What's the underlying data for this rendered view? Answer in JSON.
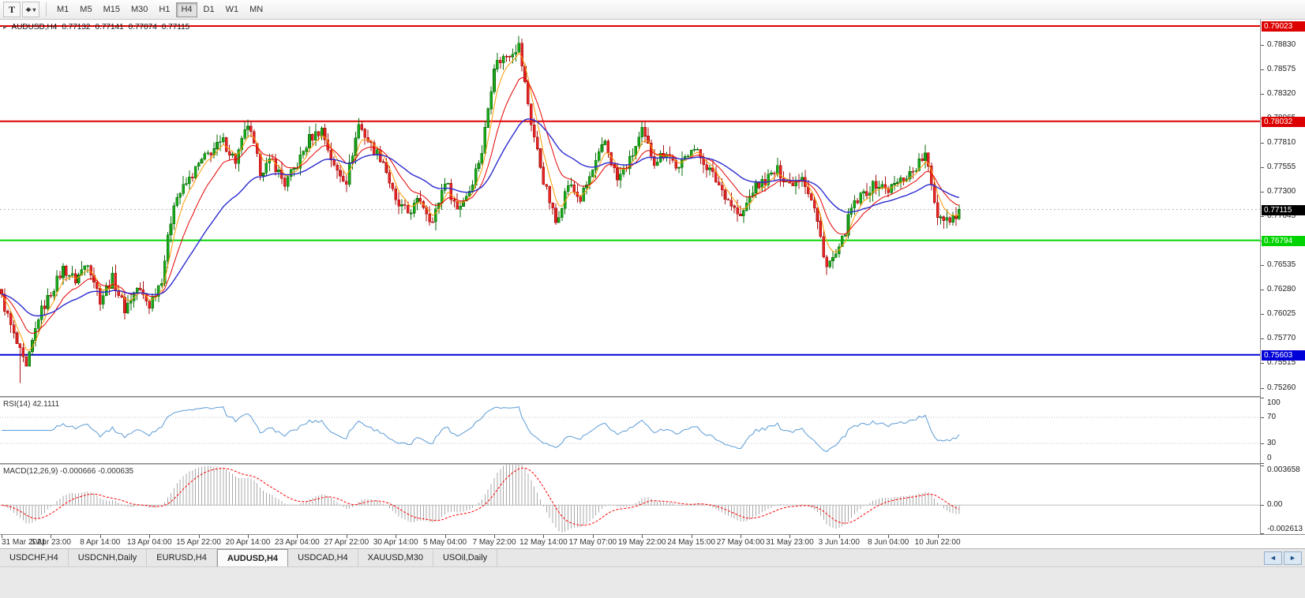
{
  "toolbar": {
    "text_tool_label": "T",
    "cursor_tool_glyph": "⌖",
    "cursor_tool_caret": "▾",
    "timeframes": [
      {
        "label": "M1",
        "active": false
      },
      {
        "label": "M5",
        "active": false
      },
      {
        "label": "M15",
        "active": false
      },
      {
        "label": "M30",
        "active": false
      },
      {
        "label": "H1",
        "active": false
      },
      {
        "label": "H4",
        "active": true
      },
      {
        "label": "D1",
        "active": false
      },
      {
        "label": "W1",
        "active": false
      },
      {
        "label": "MN",
        "active": false
      }
    ]
  },
  "quote_line": {
    "marker": "▸",
    "symbol": "AUDUSD,H4",
    "open": "0.77132",
    "high": "0.77141",
    "low": "0.77074",
    "close": "0.77115"
  },
  "price_scale": {
    "labels": [
      "0.78830",
      "0.78575",
      "0.78320",
      "0.78065",
      "0.77810",
      "0.77555",
      "0.77300",
      "0.77045",
      "0.76790",
      "0.76535",
      "0.76280",
      "0.76025",
      "0.75770",
      "0.75515",
      "0.75260"
    ]
  },
  "levels": [
    {
      "price": 0.79023,
      "label": "0.79023",
      "color": "#dd0000",
      "text_color": "#ffffff",
      "thickness": 2
    },
    {
      "price": 0.78032,
      "label": "0.78032",
      "color": "#dd0000",
      "text_color": "#ffffff",
      "thickness": 2
    },
    {
      "price": 0.76794,
      "label": "0.76794",
      "color": "#00d400",
      "text_color": "#ffffff",
      "thickness": 2
    },
    {
      "price": 0.75603,
      "label": "0.75603",
      "color": "#0000d9",
      "text_color": "#ffffff",
      "thickness": 2
    }
  ],
  "current_price": {
    "value": 0.77115,
    "label": "0.77115",
    "bg": "#000000",
    "text_color": "#ffffff"
  },
  "time_axis": [
    "31 Mar 2021",
    "5 Apr 23:00",
    "8 Apr 14:00",
    "13 Apr 04:00",
    "15 Apr 22:00",
    "20 Apr 14:00",
    "23 Apr 04:00",
    "27 Apr 22:00",
    "30 Apr 14:00",
    "5 May 04:00",
    "7 May 22:00",
    "12 May 14:00",
    "17 May 07:00",
    "19 May 22:00",
    "24 May 15:00",
    "27 May 04:00",
    "31 May 23:00",
    "3 Jun 14:00",
    "8 Jun 04:00",
    "10 Jun 22:00"
  ],
  "rsi_panel": {
    "label": "RSI(14) 42.1111",
    "scale": [
      "100",
      "70",
      "30",
      "0"
    ],
    "levels": [
      70,
      30
    ],
    "line_color": "#5b9bd5"
  },
  "macd_panel": {
    "label": "MACD(12,26,9) -0.000666 -0.000635",
    "scale_top": "0.003658",
    "scale_zero": "0.00",
    "scale_bottom": "-0.002613",
    "histogram_color": "#a8a8a8",
    "signal_color": "#ff0000"
  },
  "tabs": [
    {
      "label": "USDCHF,H4",
      "active": false
    },
    {
      "label": "USDCNH,Daily",
      "active": false
    },
    {
      "label": "EURUSD,H4",
      "active": false
    },
    {
      "label": "AUDUSD,H4",
      "active": true
    },
    {
      "label": "USDCAD,H4",
      "active": false
    },
    {
      "label": "XAUUSD,M30",
      "active": false
    },
    {
      "label": "USOil,Daily",
      "active": false
    }
  ],
  "tab_scroll": {
    "left": "◄",
    "right": "►"
  },
  "chart_data": {
    "type": "candlestick",
    "symbol": "AUDUSD",
    "timeframe": "H4",
    "visible_range": {
      "start": "31 Mar 2021",
      "end": "11 Jun 2021"
    },
    "price_axis": {
      "min": 0.75174,
      "max": 0.79089
    },
    "candle_count": 312,
    "waypoint_step": 4,
    "close_waypoints": [
      0.762,
      0.758,
      0.7545,
      0.76,
      0.7625,
      0.765,
      0.7638,
      0.7658,
      0.7618,
      0.764,
      0.7608,
      0.763,
      0.7612,
      0.764,
      0.772,
      0.7738,
      0.7758,
      0.7772,
      0.7782,
      0.7762,
      0.78,
      0.7752,
      0.7762,
      0.7738,
      0.7758,
      0.7785,
      0.7795,
      0.7755,
      0.7742,
      0.78,
      0.7778,
      0.7762,
      0.7718,
      0.7708,
      0.7722,
      0.7698,
      0.7742,
      0.7712,
      0.7732,
      0.7772,
      0.7862,
      0.7872,
      0.7882,
      0.7802,
      0.7742,
      0.7698,
      0.7738,
      0.7722,
      0.7752,
      0.7782,
      0.7742,
      0.7762,
      0.7792,
      0.7762,
      0.7772,
      0.7752,
      0.7778,
      0.7762,
      0.7742,
      0.7722,
      0.7702,
      0.7732,
      0.7742,
      0.7752,
      0.7738,
      0.7748,
      0.7712,
      0.7652,
      0.7668,
      0.7712,
      0.7728,
      0.7738,
      0.7732,
      0.7742,
      0.7752,
      0.7768,
      0.7706,
      0.7702,
      0.77115
    ],
    "last_close": 0.77115,
    "deep_low": {
      "index": 6,
      "low": 0.7531
    },
    "up_color": "#19a819",
    "up_border": "#0b6e0b",
    "down_color": "#e32424",
    "down_border": "#a81212",
    "moving_averages": [
      {
        "period": 5,
        "color": "#ff9900",
        "width": 1
      },
      {
        "period": 13,
        "color": "#e60000",
        "width": 1
      },
      {
        "period": 34,
        "color": "#2b2bd0",
        "width": 1.4
      }
    ],
    "indicators": {
      "rsi": {
        "period": 14,
        "last": 42.1111,
        "range": [
          0,
          100
        ]
      },
      "macd": {
        "fast": 12,
        "slow": 26,
        "signal": 9,
        "last_main": -0.000666,
        "last_signal": -0.000635,
        "range": [
          -0.002613,
          0.003658
        ]
      }
    }
  }
}
